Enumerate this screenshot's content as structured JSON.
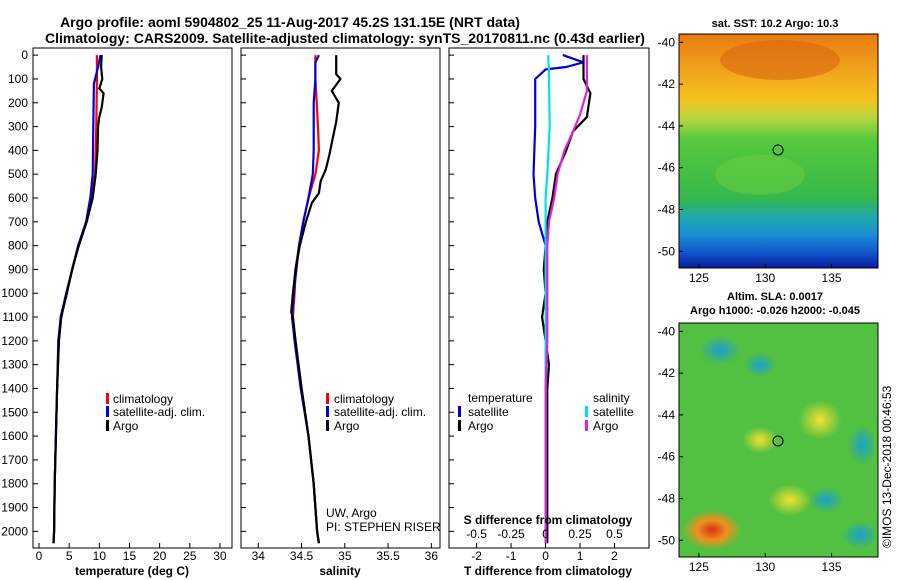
{
  "header": {
    "line1": "Argo profile: aoml 5904802_25 11-Aug-2017 45.2S 131.15E (NRT data)",
    "line2": "Climatology: CARS2009. Satellite-adjusted climatology: synTS_20170811.nc (0.43d earlier)"
  },
  "depth_ticks": [
    "0",
    "100",
    "200",
    "300",
    "400",
    "500",
    "600",
    "700",
    "800",
    "900",
    "1000",
    "1100",
    "1200",
    "1300",
    "1400",
    "1500",
    "1600",
    "1700",
    "1800",
    "1900",
    "2000"
  ],
  "chart_data": [
    {
      "type": "line",
      "xlabel": "temperature (deg C)",
      "xlim": [
        -1,
        32
      ],
      "ylim": [
        2070,
        -30
      ],
      "xticks": [
        "0",
        "5",
        "10",
        "15",
        "20",
        "25",
        "30"
      ],
      "legend": [
        "climatology",
        "satellite-adj. clim.",
        "Argo"
      ],
      "series": [
        {
          "name": "climatology",
          "color": "#ff0000",
          "points": [
            [
              9.6,
              0
            ],
            [
              9.6,
              100
            ],
            [
              9.5,
              300
            ],
            [
              9.3,
              500
            ],
            [
              8.7,
              600
            ],
            [
              7.8,
              700
            ],
            [
              6.5,
              800
            ],
            [
              5.5,
              900
            ],
            [
              4.6,
              1000
            ],
            [
              3.6,
              1100
            ],
            [
              3.3,
              1200
            ],
            [
              3.0,
              1400
            ],
            [
              2.8,
              1600
            ],
            [
              2.6,
              1800
            ],
            [
              2.5,
              2000
            ],
            [
              2.4,
              2050
            ]
          ]
        },
        {
          "name": "satellite-adj. clim.",
          "color": "#0000dd",
          "points": [
            [
              10.2,
              0
            ],
            [
              9.8,
              50
            ],
            [
              9.1,
              120
            ],
            [
              9.0,
              300
            ],
            [
              8.9,
              500
            ],
            [
              8.5,
              600
            ],
            [
              7.8,
              700
            ],
            [
              6.5,
              800
            ],
            [
              5.5,
              900
            ],
            [
              4.5,
              1000
            ],
            [
              3.6,
              1100
            ],
            [
              3.2,
              1200
            ],
            [
              3.0,
              1400
            ],
            [
              2.8,
              1600
            ],
            [
              2.6,
              1800
            ],
            [
              2.5,
              2000
            ],
            [
              2.4,
              2050
            ]
          ]
        },
        {
          "name": "Argo",
          "color": "#000000",
          "points": [
            [
              10.4,
              0
            ],
            [
              10.3,
              50
            ],
            [
              10.5,
              100
            ],
            [
              10.0,
              140
            ],
            [
              10.7,
              160
            ],
            [
              10.4,
              220
            ],
            [
              10.0,
              260
            ],
            [
              9.8,
              300
            ],
            [
              9.7,
              400
            ],
            [
              9.4,
              500
            ],
            [
              8.9,
              600
            ],
            [
              7.9,
              700
            ],
            [
              6.6,
              800
            ],
            [
              5.5,
              900
            ],
            [
              4.6,
              1000
            ],
            [
              3.7,
              1100
            ],
            [
              3.3,
              1200
            ],
            [
              3.0,
              1400
            ],
            [
              2.8,
              1600
            ],
            [
              2.6,
              1800
            ],
            [
              2.5,
              2000
            ],
            [
              2.4,
              2050
            ]
          ]
        }
      ]
    },
    {
      "type": "line",
      "xlabel": "salinity",
      "xlim": [
        33.8,
        36.1
      ],
      "ylim": [
        2070,
        -30
      ],
      "xticks": [
        "34",
        "34.5",
        "35",
        "35.5",
        "36"
      ],
      "legend": [
        "climatology",
        "satellite-adj. clim.",
        "Argo"
      ],
      "note": [
        "UW, Argo",
        "PI: STEPHEN RISER"
      ],
      "series": [
        {
          "name": "climatology",
          "color": "#ff0000",
          "points": [
            [
              34.66,
              0
            ],
            [
              34.66,
              100
            ],
            [
              34.69,
              300
            ],
            [
              34.7,
              400
            ],
            [
              34.66,
              500
            ],
            [
              34.58,
              600
            ],
            [
              34.52,
              700
            ],
            [
              34.47,
              800
            ],
            [
              34.43,
              900
            ],
            [
              34.42,
              1000
            ],
            [
              34.4,
              1100
            ],
            [
              34.43,
              1200
            ],
            [
              34.5,
              1400
            ],
            [
              34.58,
              1600
            ],
            [
              34.64,
              1800
            ],
            [
              34.68,
              2000
            ],
            [
              34.7,
              2050
            ]
          ]
        },
        {
          "name": "satellite-adj. clim.",
          "color": "#0000dd",
          "points": [
            [
              34.7,
              0
            ],
            [
              34.66,
              30
            ],
            [
              34.66,
              100
            ],
            [
              34.64,
              200
            ],
            [
              34.64,
              400
            ],
            [
              34.63,
              500
            ],
            [
              34.58,
              600
            ],
            [
              34.52,
              700
            ],
            [
              34.47,
              800
            ],
            [
              34.44,
              900
            ],
            [
              34.41,
              1000
            ],
            [
              34.39,
              1100
            ],
            [
              34.42,
              1200
            ],
            [
              34.49,
              1400
            ],
            [
              34.58,
              1600
            ],
            [
              34.64,
              1800
            ],
            [
              34.68,
              2000
            ],
            [
              34.7,
              2050
            ]
          ]
        },
        {
          "name": "Argo",
          "color": "#000000",
          "points": [
            [
              34.9,
              0
            ],
            [
              34.9,
              80
            ],
            [
              34.95,
              100
            ],
            [
              34.85,
              150
            ],
            [
              34.93,
              200
            ],
            [
              34.9,
              280
            ],
            [
              34.86,
              350
            ],
            [
              34.82,
              420
            ],
            [
              34.78,
              480
            ],
            [
              34.72,
              530
            ],
            [
              34.7,
              580
            ],
            [
              34.62,
              620
            ],
            [
              34.55,
              700
            ],
            [
              34.48,
              800
            ],
            [
              34.43,
              900
            ],
            [
              34.4,
              1000
            ],
            [
              34.38,
              1080
            ],
            [
              34.4,
              1100
            ],
            [
              34.43,
              1200
            ],
            [
              34.5,
              1400
            ],
            [
              34.58,
              1600
            ],
            [
              34.64,
              1800
            ],
            [
              34.68,
              2000
            ],
            [
              34.7,
              2050
            ]
          ]
        }
      ]
    },
    {
      "type": "line",
      "xlabel": "T difference from climatology",
      "xlabel2": "S difference from climatology",
      "xlim": [
        -2.8,
        3.0
      ],
      "ylim": [
        2070,
        -30
      ],
      "xticks": [
        "-2",
        "-1",
        "0",
        "1",
        "2"
      ],
      "xticks2": [
        "-0.5",
        "-0.25",
        "0",
        "0.25",
        "0.5"
      ],
      "legend_left_title": "temperature",
      "legend_right_title": "salinity",
      "legend_left": [
        "satellite",
        "Argo"
      ],
      "legend_right": [
        "satellite",
        "Argo"
      ],
      "series": [
        {
          "name": "temperature satellite",
          "color": "#0000dd",
          "points": [
            [
              0.5,
              0
            ],
            [
              0.9,
              20
            ],
            [
              1.1,
              30
            ],
            [
              0.6,
              50
            ],
            [
              0.0,
              60
            ],
            [
              -0.3,
              100
            ],
            [
              -0.3,
              300
            ],
            [
              -0.35,
              500
            ],
            [
              -0.3,
              600
            ],
            [
              -0.2,
              700
            ],
            [
              0.0,
              800
            ],
            [
              0.0,
              900
            ],
            [
              0.0,
              1000
            ],
            [
              0.0,
              1100
            ],
            [
              0.0,
              1200
            ],
            [
              0.0,
              1400
            ],
            [
              0.0,
              1600
            ],
            [
              0.0,
              1800
            ],
            [
              0.0,
              2000
            ],
            [
              0.0,
              2050
            ]
          ]
        },
        {
          "name": "temperature Argo",
          "color": "#000000",
          "points": [
            [
              1.1,
              0
            ],
            [
              1.1,
              100
            ],
            [
              1.3,
              160
            ],
            [
              1.2,
              260
            ],
            [
              0.8,
              320
            ],
            [
              0.6,
              400
            ],
            [
              0.3,
              500
            ],
            [
              0.2,
              600
            ],
            [
              0.05,
              700
            ],
            [
              0.0,
              800
            ],
            [
              -0.05,
              900
            ],
            [
              0.0,
              1000
            ],
            [
              -0.1,
              1100
            ],
            [
              0.0,
              1200
            ],
            [
              0.1,
              1300
            ],
            [
              0.05,
              1400
            ],
            [
              0.05,
              1600
            ],
            [
              0.05,
              1800
            ],
            [
              0.05,
              2000
            ],
            [
              0.05,
              2050
            ]
          ]
        },
        {
          "name": "salinity satellite",
          "color": "#00e0e8",
          "points": [
            [
              0.08,
              0
            ],
            [
              0.1,
              100
            ],
            [
              0.12,
              300
            ],
            [
              0.05,
              500
            ],
            [
              0.0,
              600
            ],
            [
              0.0,
              800
            ],
            [
              0.0,
              1000
            ],
            [
              0.0,
              1200
            ],
            [
              0.0,
              1600
            ],
            [
              0.0,
              2000
            ],
            [
              0.0,
              2050
            ]
          ]
        },
        {
          "name": "salinity Argo",
          "color": "#e020e0",
          "points": [
            [
              1.2,
              0
            ],
            [
              1.2,
              150
            ],
            [
              1.0,
              250
            ],
            [
              0.8,
              320
            ],
            [
              0.55,
              400
            ],
            [
              0.35,
              500
            ],
            [
              0.25,
              600
            ],
            [
              0.1,
              700
            ],
            [
              0.05,
              800
            ],
            [
              0.05,
              1000
            ],
            [
              0.05,
              1200
            ],
            [
              0.0,
              1400
            ],
            [
              0.0,
              2000
            ],
            [
              0.0,
              2050
            ]
          ]
        }
      ]
    },
    {
      "type": "heatmap",
      "title": "sat. SST: 10.2 Argo: 10.3",
      "xticks": [
        "125",
        "130",
        "135"
      ],
      "yticks": [
        "-40",
        "-42",
        "-44",
        "-46",
        "-48",
        "-50"
      ],
      "marker": [
        131.15,
        -45.2
      ]
    },
    {
      "type": "heatmap",
      "title": "Altim. SLA: 0.0017",
      "title2": "Argo h1000: -0.026 h2000: -0.045",
      "xticks": [
        "125",
        "130",
        "135"
      ],
      "yticks": [
        "-40",
        "-42",
        "-44",
        "-46",
        "-48",
        "-50"
      ],
      "marker": [
        131.15,
        -45.2
      ]
    }
  ],
  "stamp": "©IMOS 13-Dec-2018 00:46:53"
}
